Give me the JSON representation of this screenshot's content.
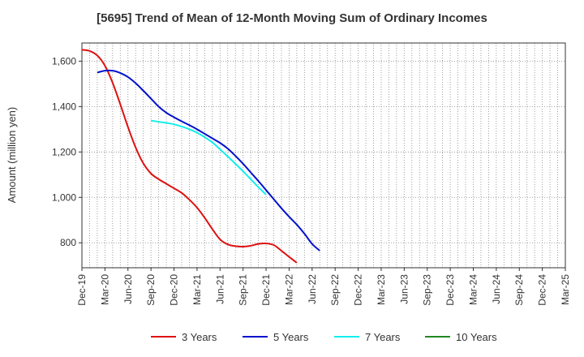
{
  "chart_data": {
    "type": "line",
    "title": "[5695]  Trend of Mean of 12-Month Moving Sum of Ordinary Incomes",
    "xlabel": "",
    "ylabel": "Amount (million yen)",
    "x_tick_labels": [
      "Dec-19",
      "Mar-20",
      "Jun-20",
      "Sep-20",
      "Dec-20",
      "Mar-21",
      "Jun-21",
      "Sep-21",
      "Dec-21",
      "Mar-22",
      "Jun-22",
      "Sep-22",
      "Dec-22",
      "Mar-23",
      "Jun-23",
      "Sep-23",
      "Dec-23",
      "Mar-24",
      "Jun-24",
      "Sep-24",
      "Dec-24",
      "Mar-25"
    ],
    "y_ticks": [
      800,
      1000,
      1200,
      1400,
      1600
    ],
    "y_tick_labels": [
      "800",
      "1,000",
      "1,200",
      "1,400",
      "1,600"
    ],
    "ylim": [
      690,
      1680
    ],
    "grid": true,
    "legend_position": "bottom",
    "series": [
      {
        "name": "3 Years",
        "color": "#dd1111",
        "points": [
          [
            0,
            1650
          ],
          [
            1,
            1645
          ],
          [
            2,
            1625
          ],
          [
            3,
            1580
          ],
          [
            4,
            1505
          ],
          [
            5,
            1410
          ],
          [
            6,
            1310
          ],
          [
            7,
            1220
          ],
          [
            8,
            1150
          ],
          [
            9,
            1105
          ],
          [
            10,
            1080
          ],
          [
            11,
            1060
          ],
          [
            12,
            1040
          ],
          [
            13,
            1020
          ],
          [
            14,
            990
          ],
          [
            15,
            955
          ],
          [
            16,
            910
          ],
          [
            17,
            860
          ],
          [
            18,
            815
          ],
          [
            19,
            793
          ],
          [
            20,
            785
          ],
          [
            21,
            783
          ],
          [
            22,
            787
          ],
          [
            23,
            795
          ],
          [
            24,
            797
          ],
          [
            25,
            790
          ],
          [
            26,
            765
          ],
          [
            27,
            738
          ],
          [
            28,
            712
          ]
        ]
      },
      {
        "name": "5 Years",
        "color": "#0011cc",
        "points": [
          [
            2,
            1550
          ],
          [
            3,
            1558
          ],
          [
            4,
            1558
          ],
          [
            5,
            1548
          ],
          [
            6,
            1530
          ],
          [
            7,
            1503
          ],
          [
            8,
            1470
          ],
          [
            9,
            1435
          ],
          [
            10,
            1400
          ],
          [
            11,
            1373
          ],
          [
            12,
            1353
          ],
          [
            13,
            1335
          ],
          [
            14,
            1318
          ],
          [
            15,
            1300
          ],
          [
            16,
            1280
          ],
          [
            17,
            1260
          ],
          [
            18,
            1240
          ],
          [
            19,
            1215
          ],
          [
            20,
            1183
          ],
          [
            21,
            1148
          ],
          [
            22,
            1110
          ],
          [
            23,
            1072
          ],
          [
            24,
            1032
          ],
          [
            25,
            992
          ],
          [
            26,
            952
          ],
          [
            27,
            915
          ],
          [
            28,
            880
          ],
          [
            29,
            840
          ],
          [
            30,
            795
          ],
          [
            31,
            765
          ]
        ]
      },
      {
        "name": "7 Years",
        "color": "#11eeee",
        "points": [
          [
            9,
            1338
          ],
          [
            10,
            1333
          ],
          [
            11,
            1328
          ],
          [
            12,
            1322
          ],
          [
            13,
            1312
          ],
          [
            14,
            1300
          ],
          [
            15,
            1285
          ],
          [
            16,
            1265
          ],
          [
            17,
            1242
          ],
          [
            18,
            1212
          ],
          [
            19,
            1180
          ],
          [
            20,
            1148
          ],
          [
            21,
            1115
          ],
          [
            22,
            1080
          ],
          [
            23,
            1045
          ],
          [
            24,
            1012
          ]
        ]
      },
      {
        "name": "10 Years",
        "color": "#228822",
        "points": []
      }
    ]
  }
}
